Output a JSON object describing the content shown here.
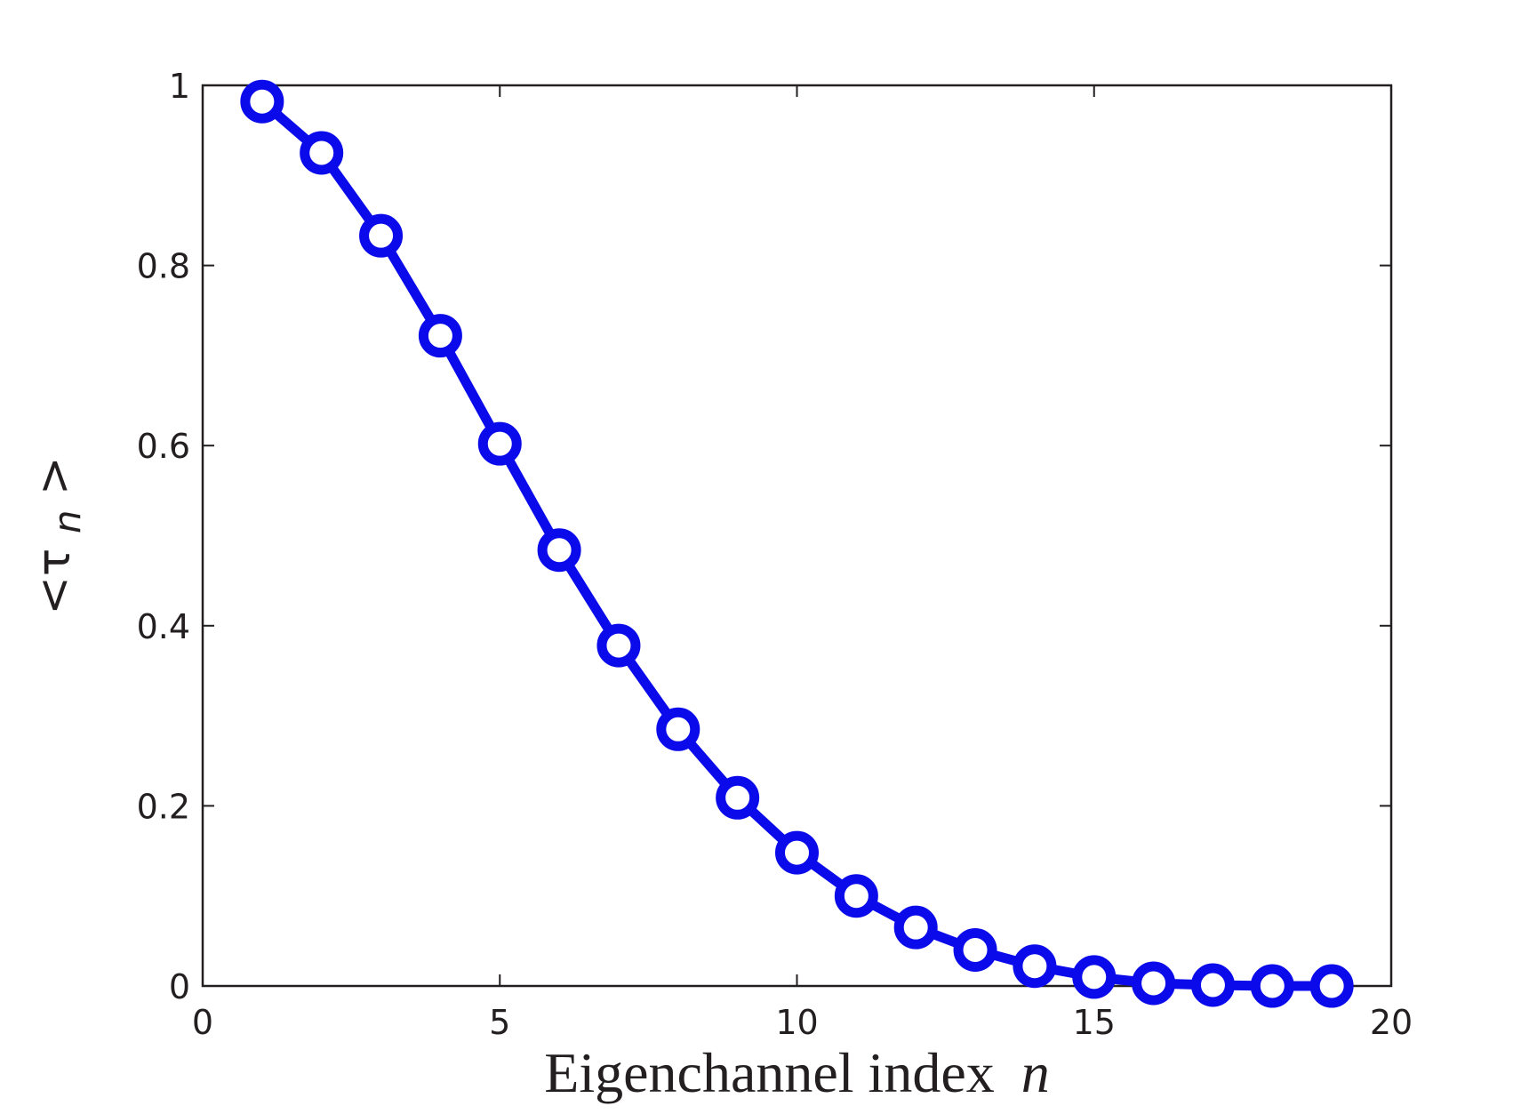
{
  "chart_data": {
    "type": "line",
    "title": "",
    "xlabel": "Eigenchannel index",
    "xlabel_var": "n",
    "ylabel_open": "<τ",
    "ylabel_sub": "n",
    "ylabel_close": ">",
    "xlim": [
      0,
      20
    ],
    "ylim": [
      0,
      1
    ],
    "xticks": [
      0,
      5,
      10,
      15,
      20
    ],
    "xtick_labels": [
      "0",
      "5",
      "10",
      "15",
      "20"
    ],
    "yticks": [
      0,
      0.2,
      0.4,
      0.6,
      0.8,
      1
    ],
    "ytick_labels": [
      "0",
      "0.2",
      "0.4",
      "0.6",
      "0.8",
      "1"
    ],
    "grid": false,
    "legend": "none",
    "series": [
      {
        "color": "#0a0aea",
        "marker": "open-circle",
        "x": [
          1,
          2,
          3,
          4,
          5,
          6,
          7,
          8,
          9,
          10,
          11,
          12,
          13,
          14,
          15,
          16,
          17,
          18,
          19
        ],
        "values": [
          0.982,
          0.925,
          0.833,
          0.722,
          0.602,
          0.484,
          0.378,
          0.285,
          0.209,
          0.148,
          0.1,
          0.065,
          0.04,
          0.022,
          0.01,
          0.003,
          0.001,
          0.0,
          0.0
        ]
      }
    ]
  }
}
